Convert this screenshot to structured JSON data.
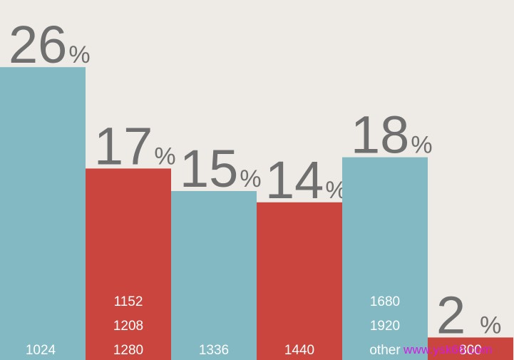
{
  "chart_data": {
    "type": "bar",
    "title": "",
    "xlabel": "",
    "ylabel": "",
    "ylim": [
      0,
      30
    ],
    "grid": false,
    "legend": "none",
    "unit_symbol": "%",
    "categories": [
      {
        "lines": [
          "1024"
        ],
        "value": 26,
        "value_label": "26",
        "color": "#82b9c3"
      },
      {
        "lines": [
          "1152",
          "1208",
          "1280"
        ],
        "value": 17,
        "value_label": "17",
        "color": "#c9453e"
      },
      {
        "lines": [
          "1336"
        ],
        "value": 15,
        "value_label": "15",
        "color": "#82b9c3"
      },
      {
        "lines": [
          "1440"
        ],
        "value": 14,
        "value_label": "14",
        "color": "#c9453e"
      },
      {
        "lines": [
          "1680",
          "1920",
          "other"
        ],
        "value": 18,
        "value_label": "18",
        "color": "#82b9c3"
      },
      {
        "lines": [
          "800"
        ],
        "value": 2,
        "value_label": "2",
        "color": "#c9453e"
      }
    ],
    "colors": {
      "teal": "#82b9c3",
      "red": "#c9453e",
      "label": "#6f6f6f",
      "background": "#eeebe6"
    }
  },
  "watermark": "www.ysk66.com"
}
